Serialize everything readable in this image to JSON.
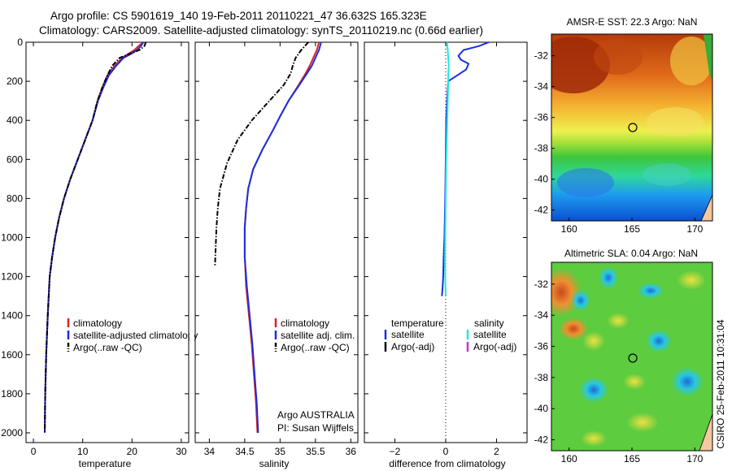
{
  "header": {
    "line1": "Argo profile: CS 5901619_140 19-Feb-2011 20110221_47 36.632S 165.323E",
    "line2": "Climatology: CARS2009. Satellite-adjusted climatology: synTS_20110219.nc (0.66d earlier)"
  },
  "colors": {
    "clim": "#dd2020",
    "sat": "#1a2ee0",
    "argo": "#000000",
    "sal_sat": "#22e5e5",
    "sal_argo": "#d030d0"
  },
  "chart_data": [
    {
      "type": "line",
      "name": "temperature-profile",
      "xlabel": "temperature",
      "ylabel": "",
      "xlim": [
        -1.5,
        31.5
      ],
      "ylim": [
        2050,
        0
      ],
      "xticks": [
        0,
        10,
        20,
        30
      ],
      "xtick_labels": [
        "0",
        "10",
        "20",
        "30"
      ],
      "yticks": [
        0,
        200,
        400,
        600,
        800,
        1000,
        1200,
        1400,
        1600,
        1800,
        2000
      ],
      "ytick_labels": [
        "0",
        "200",
        "400",
        "600",
        "800",
        "1000",
        "1200",
        "1400",
        "1600",
        "1800",
        "2000"
      ],
      "legend": [
        "climatology",
        "satellite-adjusted climatology",
        "Argo(..raw -QC)"
      ],
      "series": [
        {
          "name": "climatology",
          "color": "clim",
          "style": "solid",
          "x": [
            22.3,
            21.3,
            20.5,
            19.2,
            18.0,
            16.5,
            15.0,
            14.0,
            13.0,
            12.0,
            10.5,
            9.0,
            7.5,
            6.2,
            5.2,
            4.4,
            3.8,
            3.3,
            2.9,
            2.6,
            2.4,
            2.3
          ],
          "y": [
            0,
            20,
            40,
            60,
            80,
            120,
            170,
            230,
            300,
            400,
            500,
            600,
            700,
            800,
            900,
            1000,
            1100,
            1200,
            1400,
            1600,
            1800,
            2000
          ]
        },
        {
          "name": "satellite-adjusted climatology",
          "color": "sat",
          "style": "solid",
          "x": [
            22.3,
            21.8,
            21.0,
            19.8,
            18.3,
            16.8,
            15.3,
            14.2,
            13.1,
            12.0,
            10.5,
            9.0,
            7.5,
            6.2,
            5.2,
            4.4,
            3.8,
            3.3,
            2.9,
            2.6,
            2.4,
            2.3
          ],
          "y": [
            0,
            20,
            40,
            60,
            80,
            120,
            170,
            230,
            300,
            400,
            500,
            600,
            700,
            800,
            900,
            1000,
            1100,
            1200,
            1400,
            1600,
            1800,
            2000
          ]
        },
        {
          "name": "Argo(..raw -QC)",
          "color": "argo",
          "style": "dashdot",
          "x": [
            22.8,
            22.5,
            21.5,
            19.5,
            17.5,
            16.0,
            15.0,
            14.0,
            13.0,
            12.0,
            10.5,
            9.0,
            7.5,
            6.2,
            5.2,
            4.4,
            3.8,
            3.3,
            2.9,
            2.6,
            2.4,
            2.3
          ],
          "y": [
            0,
            20,
            40,
            60,
            80,
            120,
            170,
            230,
            300,
            400,
            500,
            600,
            700,
            800,
            900,
            1000,
            1100,
            1200,
            1400,
            1600,
            1800,
            2000
          ]
        }
      ]
    },
    {
      "type": "line",
      "name": "salinity-profile",
      "xlabel": "salinity",
      "xlim": [
        33.8,
        36.1
      ],
      "ylim": [
        2050,
        0
      ],
      "xticks": [
        34,
        34.5,
        35,
        35.5,
        36
      ],
      "xtick_labels": [
        "34",
        "34.5",
        "35",
        "35.5",
        "36"
      ],
      "legend": [
        "climatology",
        "satellite adj. clim.",
        "Argo(..raw -QC)"
      ],
      "annotation": [
        "Argo AUSTRALIA",
        "PI: Susan Wijffels"
      ],
      "series": [
        {
          "name": "climatology",
          "color": "clim",
          "style": "solid",
          "x": [
            35.55,
            35.52,
            35.47,
            35.42,
            35.36,
            35.26,
            35.12,
            35.0,
            34.9,
            34.75,
            34.62,
            34.55,
            34.52,
            34.5,
            34.5,
            34.52,
            34.56,
            34.6,
            34.63,
            34.66,
            34.68
          ],
          "y": [
            0,
            40,
            80,
            120,
            160,
            220,
            300,
            380,
            450,
            550,
            650,
            750,
            850,
            950,
            1100,
            1250,
            1400,
            1550,
            1700,
            1850,
            2000
          ]
        },
        {
          "name": "satellite adj. clim.",
          "color": "sat",
          "style": "solid",
          "x": [
            35.58,
            35.55,
            35.5,
            35.45,
            35.38,
            35.27,
            35.12,
            35.0,
            34.9,
            34.75,
            34.62,
            34.55,
            34.52,
            34.5,
            34.5,
            34.53,
            34.57,
            34.61,
            34.64,
            34.67,
            34.69
          ],
          "y": [
            0,
            40,
            80,
            120,
            160,
            220,
            300,
            380,
            450,
            550,
            650,
            750,
            850,
            950,
            1100,
            1250,
            1400,
            1550,
            1700,
            1850,
            2000
          ]
        },
        {
          "name": "Argo(..raw -QC)",
          "color": "argo",
          "style": "dashdot",
          "x": [
            35.4,
            35.3,
            35.22,
            35.18,
            35.15,
            35.05,
            34.85,
            34.6,
            34.4,
            34.25,
            34.15,
            34.12,
            34.1,
            34.09,
            34.08
          ],
          "y": [
            0,
            40,
            80,
            120,
            160,
            220,
            300,
            400,
            500,
            620,
            750,
            850,
            950,
            1050,
            1150
          ]
        }
      ]
    },
    {
      "type": "line",
      "name": "difference-profile",
      "xlabel": "difference from climatology",
      "xlim": [
        -3.2,
        3.2
      ],
      "ylim": [
        2050,
        0
      ],
      "xticks": [
        -2,
        0,
        2
      ],
      "xtick_labels": [
        "−2",
        "0",
        "2"
      ],
      "legend_left": {
        "header": "temperature",
        "items": [
          "satellite",
          "Argo(-adj)"
        ]
      },
      "legend_right": {
        "header": "salinity",
        "items": [
          "satellite",
          "Argo(-adj)"
        ]
      },
      "series": [
        {
          "name": "temperature satellite",
          "color": "sat",
          "style": "solid",
          "x": [
            1.7,
            1.3,
            0.7,
            0.5,
            0.6,
            0.9,
            0.8,
            0.1,
            0.05,
            0.02,
            0.0,
            -0.02,
            -0.05,
            -0.08,
            -0.1,
            -0.12,
            -0.15
          ],
          "y": [
            0,
            20,
            40,
            70,
            90,
            110,
            140,
            200,
            300,
            400,
            600,
            800,
            1000,
            1100,
            1200,
            1250,
            1300
          ]
        },
        {
          "name": "salinity satellite",
          "color": "sal_sat",
          "style": "solid",
          "x": [
            0.05,
            0.08,
            0.1,
            0.12,
            0.1,
            0.1,
            0.08,
            0.05,
            0.02,
            0.0,
            -0.02,
            -0.03,
            -0.02,
            0.0
          ],
          "y": [
            0,
            40,
            80,
            120,
            160,
            220,
            300,
            450,
            600,
            800,
            1000,
            1100,
            1200,
            1300
          ]
        }
      ]
    }
  ],
  "maps": [
    {
      "title": "AMSR-E SST: 22.3 Argo: NaN",
      "xtick_labels": [
        "160",
        "165",
        "170"
      ],
      "ytick_labels": [
        "-32",
        "-34",
        "-36",
        "-38",
        "-40",
        "-42"
      ],
      "marker": {
        "lon": 165.3,
        "lat": -36.6
      }
    },
    {
      "title": "Altimetric SLA: 0.04 Argo: NaN",
      "xtick_labels": [
        "160",
        "165",
        "170"
      ],
      "ytick_labels": [
        "-32",
        "-34",
        "-36",
        "-38",
        "-40",
        "-42"
      ],
      "marker": {
        "lon": 165.3,
        "lat": -36.6
      }
    }
  ],
  "side_text": "CSIRO 25-Feb-2011 10:31:04"
}
